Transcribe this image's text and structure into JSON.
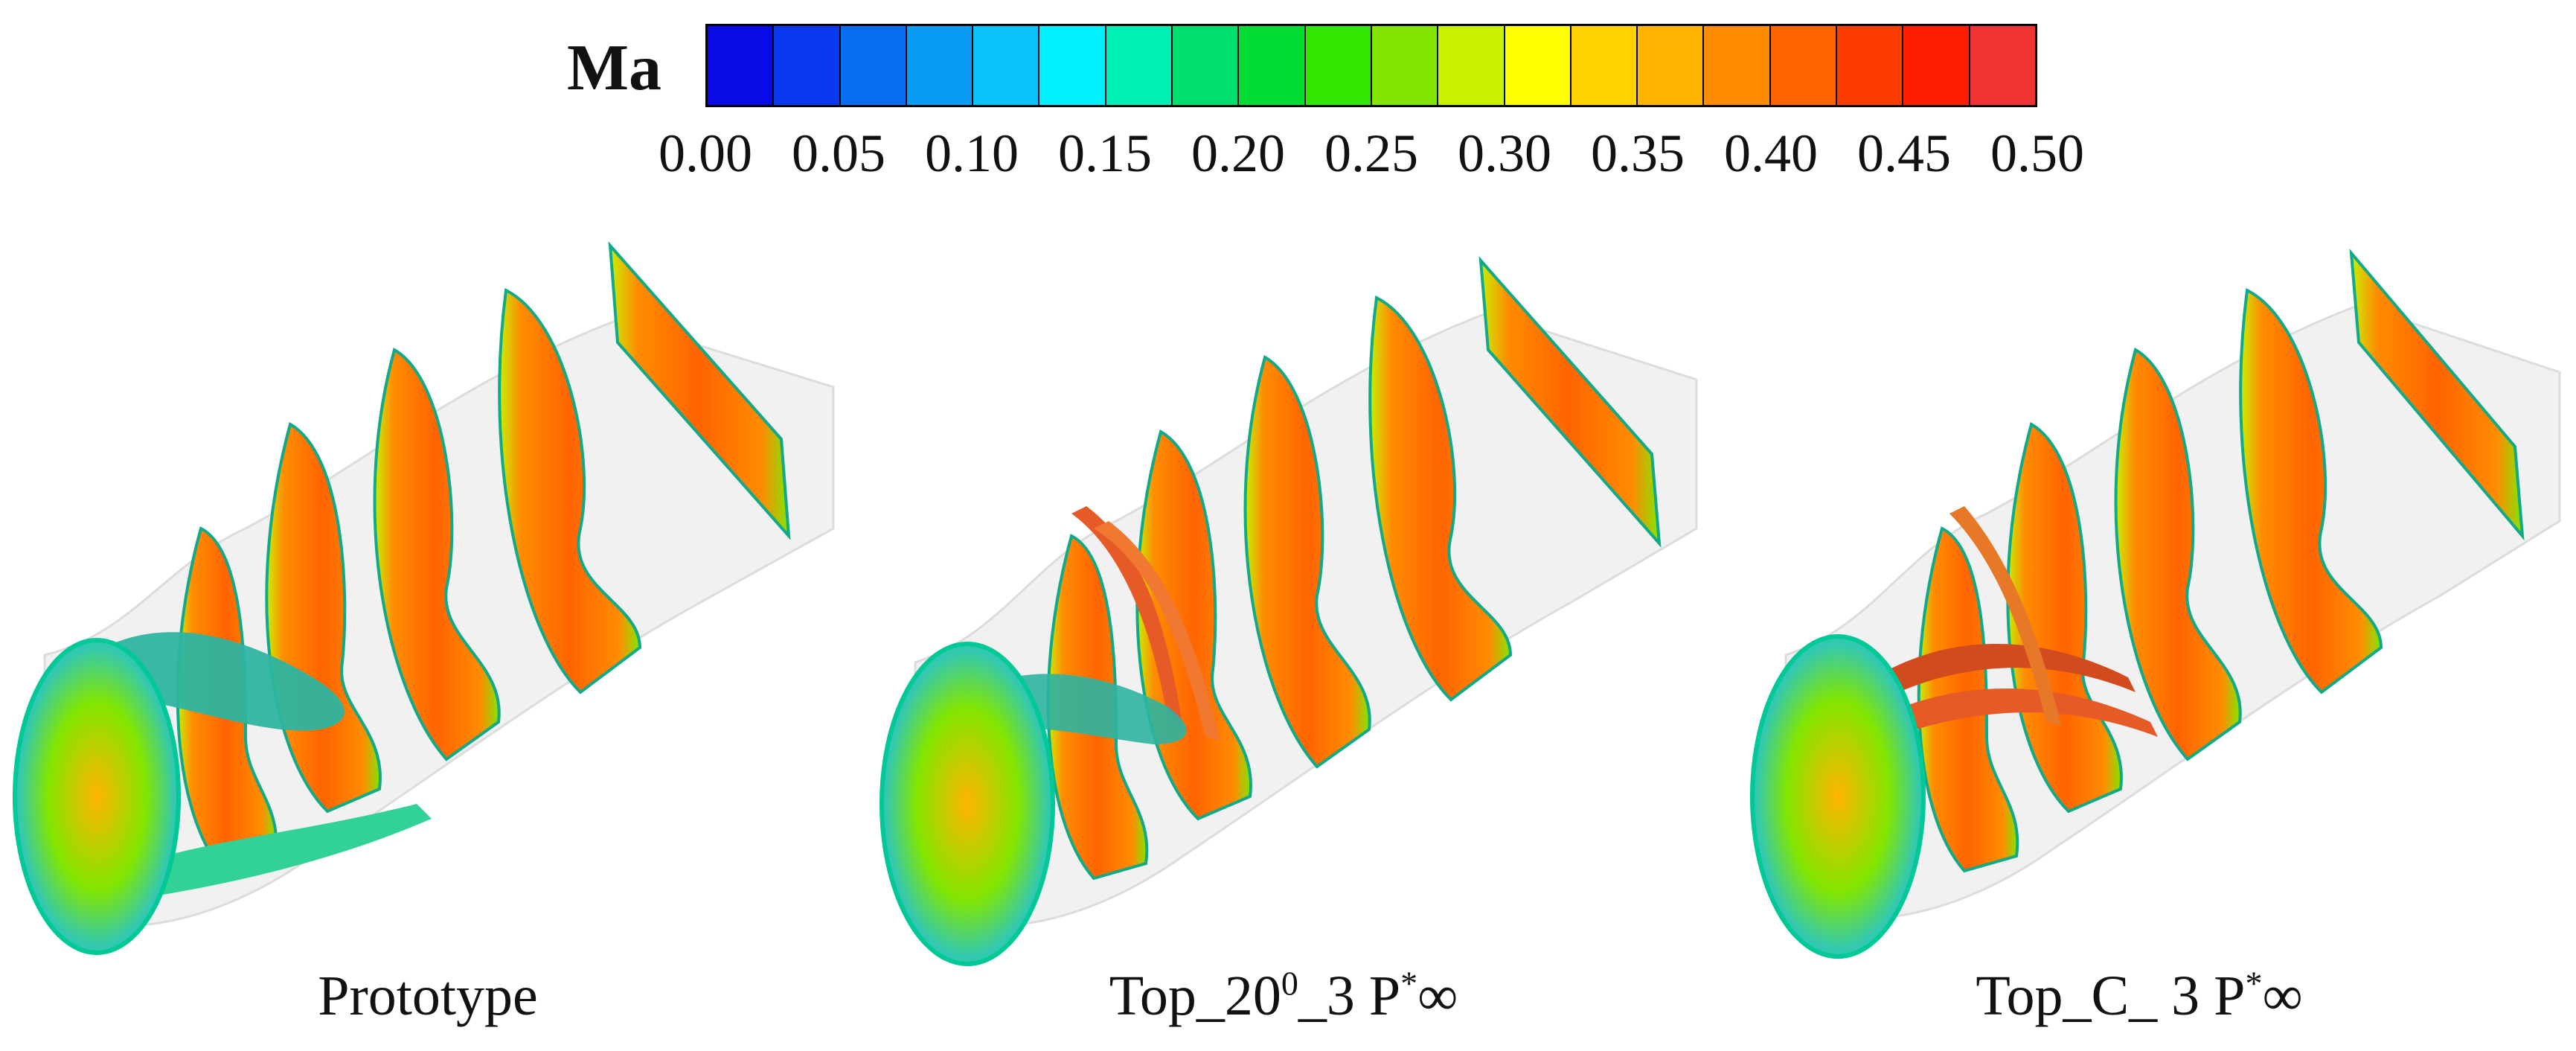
{
  "legend": {
    "title": "Ma",
    "ticks": [
      "0.00",
      "0.05",
      "0.10",
      "0.15",
      "0.20",
      "0.25",
      "0.30",
      "0.35",
      "0.40",
      "0.45",
      "0.50"
    ],
    "range": [
      0.0,
      0.5
    ],
    "colors": [
      "#0a0ae6",
      "#0a37f0",
      "#0a6ef5",
      "#0a9cf5",
      "#0ac3fa",
      "#00f0ff",
      "#00f0b4",
      "#00e06e",
      "#00dc32",
      "#32e600",
      "#82e600",
      "#c8f000",
      "#ffff00",
      "#ffd200",
      "#ffb400",
      "#ff8c00",
      "#ff6400",
      "#ff3c00",
      "#ff1e00",
      "#f03232"
    ]
  },
  "panels": [
    {
      "caption_main": "Prototype",
      "caption_sup": "",
      "caption_rest": "",
      "caption_sup2": "",
      "caption_end": ""
    },
    {
      "caption_main": "Top_20",
      "caption_sup": "0",
      "caption_rest": "_3 P",
      "caption_sup2": "*",
      "caption_end": "∞"
    },
    {
      "caption_main": "Top_C_ 3 P",
      "caption_sup": "*",
      "caption_rest": "∞",
      "caption_sup2": "",
      "caption_end": ""
    }
  ]
}
